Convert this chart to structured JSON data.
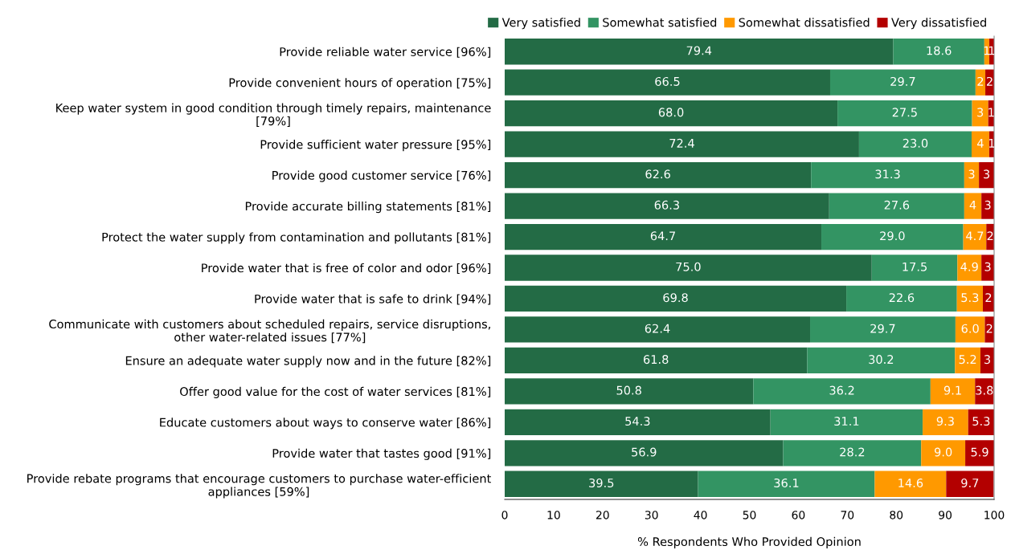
{
  "chart_data": {
    "type": "bar",
    "orientation": "horizontal",
    "stacked": true,
    "xlabel": "% Respondents Who Provided Opinion",
    "categories": [
      "Provide reliable water service [96%]",
      "Provide convenient hours of operation [75%]",
      "Keep water system in good condition through timely repairs, maintenance\n[79%]",
      "Provide sufficient water pressure [95%]",
      "Provide good customer service [76%]",
      "Provide accurate billing statements [81%]",
      "Protect the water supply from contamination and pollutants [81%]",
      "Provide water that is free of color and odor [96%]",
      "Provide water that is safe to drink [94%]",
      "Communicate with customers about scheduled repairs, service disruptions,\nother water-related issues [77%]",
      "Ensure an adequate water supply now and in the future [82%]",
      "Offer good value for the cost of water services [81%]",
      "Educate customers about ways to conserve water [86%]",
      "Provide water that tastes good [91%]",
      "Provide rebate programs that encourage customers to purchase water-efficient\nappliances [59%]"
    ],
    "series": [
      {
        "name": "Very satisfied",
        "color": "#236b45",
        "values": [
          79.4,
          66.5,
          68.0,
          72.4,
          62.6,
          66.3,
          64.7,
          75.0,
          69.8,
          62.4,
          61.8,
          50.8,
          54.3,
          56.9,
          39.5
        ],
        "value_labels": [
          "79.4",
          "66.5",
          "68.0",
          "72.4",
          "62.6",
          "66.3",
          "64.7",
          "75.0",
          "69.8",
          "62.4",
          "61.8",
          "50.8",
          "54.3",
          "56.9",
          "39.5"
        ]
      },
      {
        "name": "Somewhat satisfied",
        "color": "#339463",
        "values": [
          18.6,
          29.7,
          27.5,
          23.0,
          31.3,
          27.6,
          29.0,
          17.5,
          22.6,
          29.7,
          30.2,
          36.2,
          31.1,
          28.2,
          36.1
        ],
        "value_labels": [
          "18.6",
          "29.7",
          "27.5",
          "23.0",
          "31.3",
          "27.6",
          "29.0",
          "17.5",
          "22.6",
          "29.7",
          "30.2",
          "36.2",
          "31.1",
          "28.2",
          "36.1"
        ]
      },
      {
        "name": "Somewhat dissatisfied",
        "color": "#ff9900",
        "values": [
          1.0,
          2.0,
          3.3,
          3.6,
          3.0,
          3.5,
          4.7,
          4.9,
          5.3,
          6.0,
          5.2,
          9.1,
          9.3,
          9.0,
          14.6
        ],
        "value_labels": [
          "1",
          "2",
          "3",
          "4",
          "3",
          "4",
          "4.7",
          "4.9",
          "5.3",
          "6.0",
          "5.2",
          "9.1",
          "9.3",
          "9.0",
          "14.6"
        ]
      },
      {
        "name": "Very dissatisfied",
        "color": "#b30000",
        "values": [
          1.0,
          1.8,
          1.2,
          1.0,
          3.1,
          2.6,
          1.6,
          2.6,
          2.3,
          1.9,
          2.8,
          3.8,
          5.3,
          5.9,
          9.7
        ],
        "value_labels": [
          "1",
          "2",
          "1",
          "1",
          "3",
          "3",
          "2",
          "3",
          "2",
          "2",
          "3",
          "3.8",
          "5.3",
          "5.9",
          "9.7"
        ]
      }
    ],
    "xlim": [
      0,
      100
    ],
    "xticks": [
      0,
      10,
      20,
      30,
      40,
      50,
      60,
      70,
      80,
      90,
      100
    ],
    "grid": false,
    "legend": "top right"
  }
}
